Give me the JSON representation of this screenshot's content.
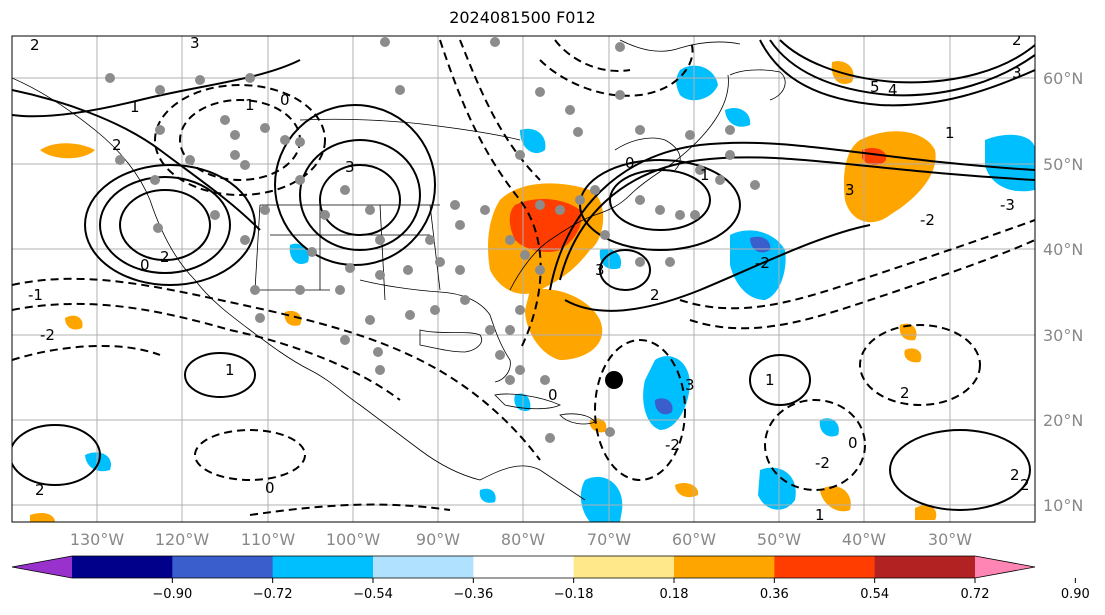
{
  "title": "2024081500 F012",
  "map": {
    "lon_range": [
      -140,
      -20
    ],
    "lat_range": [
      8,
      65
    ],
    "lon_labels": [
      "130°W",
      "120°W",
      "110°W",
      "100°W",
      "90°W",
      "80°W",
      "70°W",
      "60°W",
      "50°W",
      "40°W",
      "30°W"
    ],
    "lat_labels": [
      "60°N",
      "50°N",
      "40°N",
      "30°N",
      "20°N",
      "10°N"
    ],
    "contour_labels": [
      "2",
      "3",
      "1",
      "2",
      "0",
      "1",
      "2",
      "3",
      "-1",
      "-2",
      "0",
      "1",
      "2",
      "3",
      "0",
      "1",
      "2",
      "-2",
      "3",
      "5",
      "4",
      "3",
      "2",
      "-3",
      "-2",
      "1",
      "2",
      "3",
      "-2",
      "0",
      "1",
      "2",
      "-2",
      "0",
      "1",
      "2",
      "0"
    ]
  },
  "colorbar": {
    "colors": [
      "#9932cc",
      "#00008b",
      "#3a5fcd",
      "#00bfff",
      "#b0e2ff",
      "#ffffff",
      "#ffe88a",
      "#ffa500",
      "#ff3d00",
      "#b22222",
      "#ff85b4"
    ],
    "ticks": [
      "−0.90",
      "−0.72",
      "−0.54",
      "−0.36",
      "−0.18",
      "0.18",
      "0.36",
      "0.54",
      "0.72",
      "0.90"
    ]
  },
  "colors": {
    "grid": "#b0b0b0",
    "coast": "#000000",
    "dots": "#8c8c8c"
  }
}
